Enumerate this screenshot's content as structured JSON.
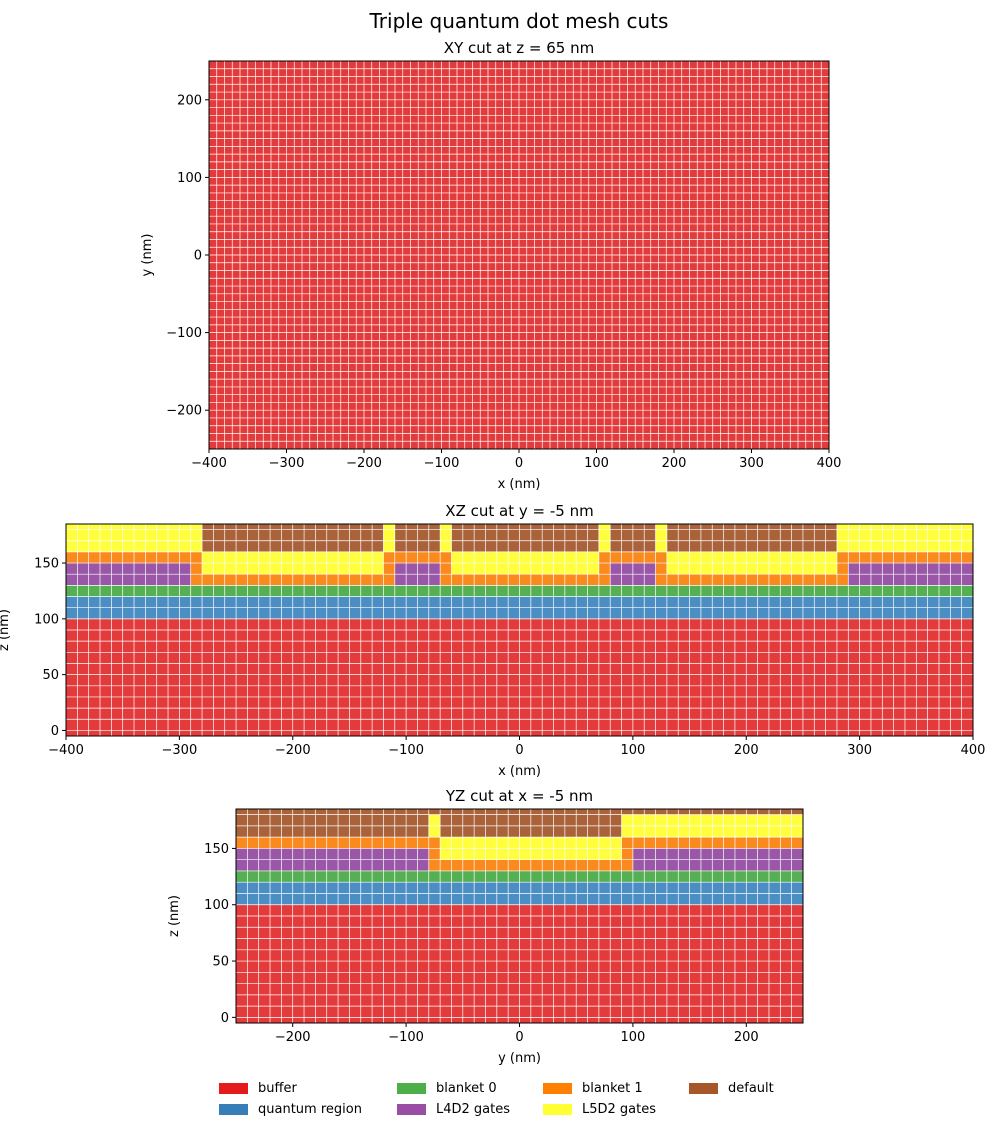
{
  "figure": {
    "title": "Triple quantum dot mesh cuts"
  },
  "colors": {
    "buffer": "#e33b3b",
    "quantum": "#4a8ec4",
    "blanket0": "#55b053",
    "blanket1": "#fa8a1e",
    "l4d2": "#9a57a8",
    "l5d2": "#ffff3d",
    "default": "#a9623a",
    "grid": "#ffffff"
  },
  "legend": [
    {
      "label": "buffer",
      "color": "#e41a1c"
    },
    {
      "label": "quantum region",
      "color": "#377eb8"
    },
    {
      "label": "blanket 0",
      "color": "#4daf4a"
    },
    {
      "label": "L4D2 gates",
      "color": "#984ea3"
    },
    {
      "label": "blanket 1",
      "color": "#ff7f00"
    },
    {
      "label": "L5D2 gates",
      "color": "#ffff33"
    },
    {
      "label": "default",
      "color": "#a65628"
    }
  ],
  "chart_data": [
    {
      "type": "heatmap",
      "title": "XY cut at z = 65 nm",
      "xlabel": "x (nm)",
      "ylabel": "y (nm)",
      "xlim": [
        -400,
        400
      ],
      "ylim": [
        -250,
        250
      ],
      "xticks": [
        -400,
        -300,
        -200,
        -100,
        0,
        100,
        200,
        300,
        400
      ],
      "yticks": [
        -200,
        -100,
        0,
        100,
        200
      ],
      "xtick_labels": [
        "−400",
        "−300",
        "−200",
        "−100",
        "0",
        "100",
        "200",
        "300",
        "400"
      ],
      "ytick_labels": [
        "−200",
        "−100",
        "0",
        "100",
        "200"
      ],
      "grid_step": 10,
      "regions": [
        {
          "material": "buffer",
          "h0": -400,
          "h1": 400,
          "v0": -250,
          "v1": 250
        }
      ]
    },
    {
      "type": "heatmap",
      "title": "XZ cut at y = -5 nm",
      "xlabel": "x (nm)",
      "ylabel": "z (nm)",
      "xlim": [
        -400,
        400
      ],
      "ylim": [
        -5,
        185
      ],
      "xticks": [
        -400,
        -300,
        -200,
        -100,
        0,
        100,
        200,
        300,
        400
      ],
      "yticks": [
        0,
        50,
        100,
        150
      ],
      "xtick_labels": [
        "−400",
        "−300",
        "−200",
        "−100",
        "0",
        "100",
        "200",
        "300",
        "400"
      ],
      "ytick_labels": [
        "0",
        "50",
        "100",
        "150"
      ],
      "grid_step": 10,
      "regions": [
        {
          "material": "buffer",
          "h0": -400,
          "h1": 400,
          "v0": -5,
          "v1": 100
        },
        {
          "material": "quantum",
          "h0": -400,
          "h1": 400,
          "v0": 100,
          "v1": 120
        },
        {
          "material": "blanket0",
          "h0": -400,
          "h1": 400,
          "v0": 120,
          "v1": 130
        },
        {
          "material": "blanket1",
          "h0": -400,
          "h1": 400,
          "v0": 130,
          "v1": 160
        },
        {
          "material": "l4d2",
          "h0": -400,
          "h1": -290,
          "v0": 130,
          "v1": 150
        },
        {
          "material": "l4d2",
          "h0": -110,
          "h1": -70,
          "v0": 130,
          "v1": 150
        },
        {
          "material": "l4d2",
          "h0": 80,
          "h1": 120,
          "v0": 130,
          "v1": 150
        },
        {
          "material": "l4d2",
          "h0": 290,
          "h1": 400,
          "v0": 130,
          "v1": 150
        },
        {
          "material": "l5d2",
          "h0": -280,
          "h1": -120,
          "v0": 140,
          "v1": 160
        },
        {
          "material": "l5d2",
          "h0": -60,
          "h1": 70,
          "v0": 140,
          "v1": 160
        },
        {
          "material": "l5d2",
          "h0": 130,
          "h1": 280,
          "v0": 140,
          "v1": 160
        },
        {
          "material": "l5d2",
          "h0": -400,
          "h1": 400,
          "v0": 160,
          "v1": 185
        },
        {
          "material": "default",
          "h0": -280,
          "h1": -120,
          "v0": 160,
          "v1": 185
        },
        {
          "material": "default",
          "h0": -110,
          "h1": -70,
          "v0": 160,
          "v1": 185
        },
        {
          "material": "default",
          "h0": -60,
          "h1": 70,
          "v0": 160,
          "v1": 185
        },
        {
          "material": "default",
          "h0": 80,
          "h1": 120,
          "v0": 160,
          "v1": 185
        },
        {
          "material": "default",
          "h0": 130,
          "h1": 280,
          "v0": 160,
          "v1": 185
        }
      ]
    },
    {
      "type": "heatmap",
      "title": "YZ cut at x = -5 nm",
      "xlabel": "y (nm)",
      "ylabel": "z (nm)",
      "xlim": [
        -250,
        250
      ],
      "ylim": [
        -5,
        185
      ],
      "xticks": [
        -200,
        -100,
        0,
        100,
        200
      ],
      "yticks": [
        0,
        50,
        100,
        150
      ],
      "xtick_labels": [
        "−200",
        "−100",
        "0",
        "100",
        "200"
      ],
      "ytick_labels": [
        "0",
        "50",
        "100",
        "150"
      ],
      "grid_step": 10,
      "regions": [
        {
          "material": "buffer",
          "h0": -250,
          "h1": 250,
          "v0": -5,
          "v1": 100
        },
        {
          "material": "quantum",
          "h0": -250,
          "h1": 250,
          "v0": 100,
          "v1": 120
        },
        {
          "material": "blanket0",
          "h0": -250,
          "h1": 250,
          "v0": 120,
          "v1": 130
        },
        {
          "material": "blanket1",
          "h0": -250,
          "h1": 250,
          "v0": 130,
          "v1": 170
        },
        {
          "material": "l4d2",
          "h0": -250,
          "h1": -80,
          "v0": 130,
          "v1": 150
        },
        {
          "material": "l4d2",
          "h0": 100,
          "h1": 250,
          "v0": 130,
          "v1": 150
        },
        {
          "material": "l5d2",
          "h0": -70,
          "h1": 90,
          "v0": 140,
          "v1": 160
        },
        {
          "material": "l5d2",
          "h0": -80,
          "h1": -70,
          "v0": 160,
          "v1": 180
        },
        {
          "material": "l5d2",
          "h0": 90,
          "h1": 250,
          "v0": 160,
          "v1": 180
        },
        {
          "material": "default",
          "h0": -250,
          "h1": -80,
          "v0": 160,
          "v1": 185
        },
        {
          "material": "default",
          "h0": -70,
          "h1": 90,
          "v0": 160,
          "v1": 185
        },
        {
          "material": "default",
          "h0": -80,
          "h1": -70,
          "v0": 180,
          "v1": 185
        },
        {
          "material": "default",
          "h0": 90,
          "h1": 250,
          "v0": 180,
          "v1": 185
        }
      ]
    }
  ]
}
